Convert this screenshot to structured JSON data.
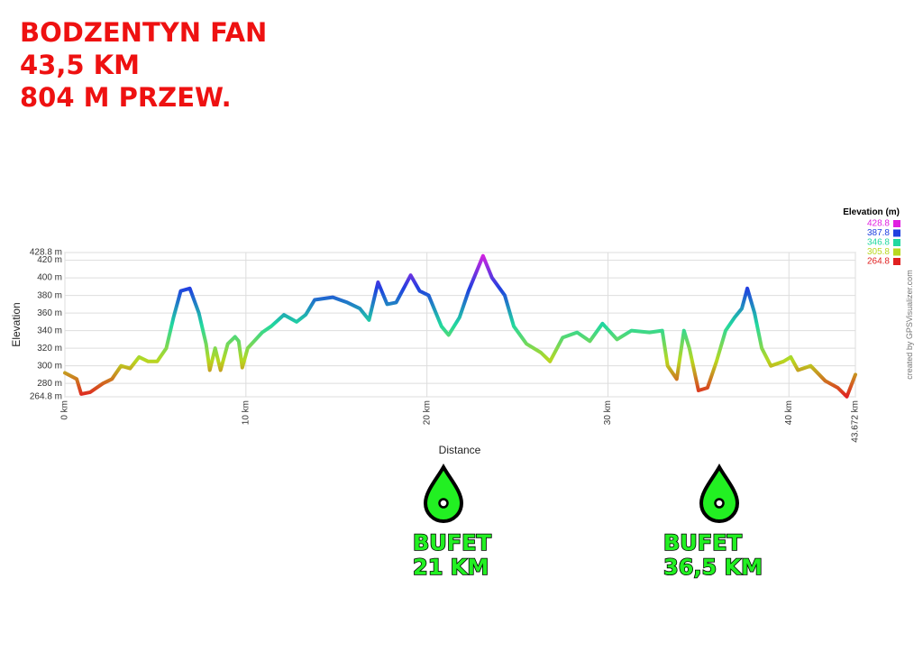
{
  "poster": {
    "title_lines": [
      "BODZENTYN FAN",
      "43,5 KM",
      "804 M PRZEW."
    ]
  },
  "annotations": [
    {
      "lines": [
        "BUFET",
        "21 KM"
      ]
    },
    {
      "lines": [
        "BUFET",
        "36,5 KM"
      ]
    }
  ],
  "chart_data": {
    "type": "line",
    "y_label": "Elevation",
    "x_label": "Distance",
    "credit": "created by GPSVisualizer.com",
    "x": [
      0,
      0.65,
      0.9,
      1.4,
      2.1,
      2.6,
      3.1,
      3.6,
      4.1,
      4.6,
      5.1,
      5.6,
      6.0,
      6.4,
      6.9,
      7.4,
      7.8,
      8.0,
      8.3,
      8.6,
      9.0,
      9.4,
      9.6,
      9.8,
      10.1,
      10.9,
      11.4,
      12.1,
      12.8,
      13.3,
      13.8,
      14.8,
      15.6,
      16.3,
      16.8,
      17.3,
      17.8,
      18.3,
      19.1,
      19.6,
      20.1,
      20.8,
      21.2,
      21.8,
      22.3,
      23.1,
      23.6,
      24.3,
      24.8,
      25.5,
      26.3,
      26.8,
      27.5,
      28.3,
      29.0,
      29.7,
      30.5,
      31.3,
      32.3,
      33.0,
      33.3,
      33.8,
      34.2,
      34.5,
      35.0,
      35.5,
      36.0,
      36.5,
      37.0,
      37.4,
      37.7,
      38.1,
      38.5,
      39.0,
      39.7,
      40.1,
      40.5,
      41.2,
      42.0,
      42.7,
      43.2,
      43.672
    ],
    "values": [
      292,
      285,
      268,
      270,
      280,
      285,
      300,
      297,
      310,
      305,
      305,
      320,
      355,
      385,
      388,
      360,
      325,
      295,
      320,
      295,
      325,
      333,
      328,
      298,
      320,
      338,
      345,
      358,
      350,
      358,
      375,
      378,
      372,
      365,
      352,
      395,
      370,
      372,
      403,
      385,
      380,
      345,
      335,
      355,
      385,
      425,
      400,
      380,
      345,
      325,
      315,
      305,
      332,
      338,
      328,
      348,
      330,
      340,
      338,
      340,
      300,
      285,
      340,
      320,
      272,
      275,
      305,
      340,
      355,
      365,
      388,
      360,
      320,
      300,
      305,
      310,
      295,
      300,
      283,
      275,
      265,
      290
    ],
    "xlim": [
      0,
      43.672
    ],
    "ylim": [
      264.8,
      428.8
    ],
    "xticks": [
      {
        "value": 0,
        "label": "0 km"
      },
      {
        "value": 10,
        "label": "10 km"
      },
      {
        "value": 20,
        "label": "20 km"
      },
      {
        "value": 30,
        "label": "30 km"
      },
      {
        "value": 40,
        "label": "40 km"
      },
      {
        "value": 43.672,
        "label": "43.672 km"
      }
    ],
    "yticks": [
      {
        "value": 264.8,
        "label": "264.8 m"
      },
      {
        "value": 280,
        "label": "280 m"
      },
      {
        "value": 300,
        "label": "300 m"
      },
      {
        "value": 320,
        "label": "320 m"
      },
      {
        "value": 340,
        "label": "340 m"
      },
      {
        "value": 360,
        "label": "360 m"
      },
      {
        "value": 380,
        "label": "380 m"
      },
      {
        "value": 400,
        "label": "400 m"
      },
      {
        "value": 420,
        "label": "420 m"
      },
      {
        "value": 428.8,
        "label": "428.8 m"
      }
    ],
    "grid": true,
    "color_scale": {
      "title": "Elevation (m)",
      "stops": [
        {
          "value": 428.8,
          "color": "#e020e0"
        },
        {
          "value": 387.8,
          "color": "#2040e0"
        },
        {
          "value": 346.8,
          "color": "#20d8a0"
        },
        {
          "value": 305.8,
          "color": "#b8d820"
        },
        {
          "value": 264.8,
          "color": "#e02020"
        }
      ]
    }
  }
}
